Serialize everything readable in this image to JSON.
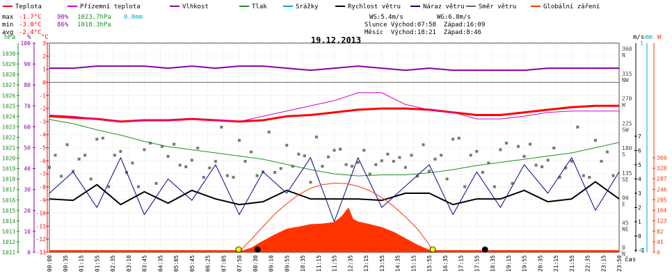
{
  "legend": [
    {
      "label": "Teplota",
      "color": "#ff0000"
    },
    {
      "label": "Přízemní teplota",
      "color": "#cc00cc"
    },
    {
      "label": "Vlhkost",
      "color": "#8800aa"
    },
    {
      "label": "Tlak",
      "color": "#228b22"
    },
    {
      "label": "Srážky",
      "color": "#00aacc"
    },
    {
      "label": "Rychlost větru",
      "color": "#000000"
    },
    {
      "label": "Náraz větru",
      "color": "#000088"
    },
    {
      "label": "Směr větru",
      "color": "#666666"
    },
    {
      "label": "Globální záření",
      "color": "#ff3300"
    }
  ],
  "stats": {
    "max_label": "max",
    "max_temp": "-1.7°C",
    "max_hum": "90%",
    "max_press": "1023.7hPa",
    "max_rain": "0.0mm",
    "min_label": "min",
    "min_temp": "-3.0°C",
    "min_hum": "86%",
    "min_press": "1018.3hPa",
    "avg_label": "avg",
    "avg_temp": "-2.4°C"
  },
  "wind_info": {
    "ws": "WS:5.4m/s",
    "wg": "WG:6.8m/s",
    "sun": "Slunce Východ:07:58  Západ:16:09",
    "moon": "Měsíc  Východ:18:21  Západ:8:46"
  },
  "axis_units": {
    "hpa": "hPa",
    "pct": "%",
    "degc": "°C",
    "ms": "m/s",
    "mm": "mm",
    "w": "W",
    "cas": "čas"
  },
  "chart_data": {
    "type": "line",
    "title": "19.12.2013",
    "xlabel": "čas",
    "x_ticks": [
      "00:00",
      "00:35",
      "01:15",
      "01:55",
      "02:35",
      "03:10",
      "03:45",
      "04:35",
      "05:05",
      "05:45",
      "06:25",
      "07:05",
      "07:50",
      "08:30",
      "09:10",
      "09:55",
      "10:35",
      "11:15",
      "11:55",
      "12:35",
      "13:15",
      "13:55",
      "14:35",
      "15:15",
      "15:55",
      "16:35",
      "17:15",
      "17:55",
      "18:35",
      "19:15",
      "19:55",
      "20:35",
      "21:15",
      "21:55",
      "22:35",
      "23:15",
      "23:50"
    ],
    "axes": {
      "pressure_hpa": {
        "range": [
          1011,
          1031
        ],
        "ticks": [
          1011,
          1012,
          1013,
          1014,
          1015,
          1016,
          1017,
          1018,
          1019,
          1020,
          1021,
          1022,
          1023,
          1024,
          1025,
          1026,
          1027,
          1028,
          1029,
          1030
        ]
      },
      "humidity_pct": {
        "range": [
          0,
          100
        ],
        "ticks": [
          0,
          10,
          20,
          30,
          40,
          50,
          60,
          70,
          80,
          90,
          100
        ]
      },
      "temperature_c": {
        "range": [
          -13,
          3
        ],
        "ticks": [
          3,
          2,
          1,
          0,
          -1,
          -2,
          -3,
          -4,
          -5,
          -6,
          -7,
          -8,
          -9,
          -10,
          -11,
          -12,
          -13
        ]
      },
      "wind_dir": {
        "ticks": [
          {
            "deg": 0,
            "dir": "N"
          },
          {
            "deg": 45,
            "dir": "NE"
          },
          {
            "deg": 90,
            "dir": "E"
          },
          {
            "deg": 135,
            "dir": "SE"
          },
          {
            "deg": 180,
            "dir": "S"
          },
          {
            "deg": 225,
            "dir": "SW"
          },
          {
            "deg": 270,
            "dir": "W"
          },
          {
            "deg": 315,
            "dir": "NW"
          },
          {
            "deg": 360,
            "dir": "N"
          }
        ]
      },
      "wind_ms": {
        "ticks": [
          -1,
          0,
          1,
          2,
          3,
          4,
          5,
          6,
          7
        ]
      },
      "rain_mm": {
        "ticks": [
          0,
          1
        ]
      },
      "radiation_w": {
        "ticks": [
          0,
          41,
          82,
          123,
          164,
          205,
          246,
          287,
          328,
          369
        ]
      }
    },
    "series": [
      {
        "name": "Teplota",
        "axis": "temperature_c",
        "color": "#ff0000",
        "width": 3,
        "x": [
          0,
          1,
          2,
          3,
          4,
          5,
          6,
          7,
          8,
          9,
          10,
          11,
          12,
          13,
          14,
          15,
          16,
          17,
          18,
          19,
          20,
          21,
          22,
          23,
          24
        ],
        "y": [
          -2.6,
          -2.7,
          -2.8,
          -3.0,
          -2.9,
          -2.9,
          -2.8,
          -2.9,
          -3.0,
          -2.9,
          -2.6,
          -2.5,
          -2.3,
          -2.1,
          -2.0,
          -2.0,
          -2.1,
          -2.3,
          -2.5,
          -2.5,
          -2.3,
          -2.1,
          -1.9,
          -1.8,
          -1.8
        ]
      },
      {
        "name": "Přízemní teplota",
        "axis": "temperature_c",
        "color": "#cc00cc",
        "width": 1,
        "x": [
          0,
          1,
          2,
          3,
          4,
          5,
          6,
          7,
          8,
          9,
          10,
          11,
          12,
          13,
          14,
          15,
          16,
          17,
          18,
          19,
          20,
          21,
          22,
          23,
          24
        ],
        "y": [
          -2.5,
          -2.6,
          -2.8,
          -3.0,
          -2.9,
          -2.9,
          -2.8,
          -2.9,
          -3.0,
          -2.6,
          -2.2,
          -1.8,
          -1.4,
          -0.8,
          -0.8,
          -1.7,
          -2.1,
          -2.3,
          -2.8,
          -2.8,
          -2.6,
          -2.3,
          -2.2,
          -2.2,
          -2.2
        ]
      },
      {
        "name": "Vlhkost",
        "axis": "humidity_pct",
        "color": "#8800aa",
        "width": 2,
        "x": [
          0,
          1,
          2,
          3,
          4,
          5,
          6,
          7,
          8,
          9,
          10,
          11,
          12,
          13,
          14,
          15,
          16,
          17,
          18,
          19,
          20,
          21,
          22,
          23,
          24
        ],
        "y": [
          88,
          88,
          89,
          89,
          89,
          88,
          89,
          88,
          89,
          89,
          88,
          87,
          88,
          89,
          88,
          87,
          88,
          87,
          87,
          87,
          87,
          88,
          88,
          88,
          88
        ]
      },
      {
        "name": "Tlak",
        "axis": "pressure_hpa",
        "color": "#228b22",
        "width": 1,
        "x": [
          0,
          1,
          2,
          3,
          4,
          5,
          6,
          7,
          8,
          9,
          10,
          11,
          12,
          13,
          14,
          15,
          16,
          17,
          18,
          19,
          20,
          21,
          22,
          23,
          24
        ],
        "y": [
          1023.7,
          1023.3,
          1022.7,
          1022.2,
          1021.6,
          1021.1,
          1020.8,
          1020.5,
          1020.2,
          1019.9,
          1019.4,
          1018.9,
          1018.5,
          1018.3,
          1018.4,
          1018.4,
          1018.6,
          1018.9,
          1019.3,
          1019.6,
          1019.9,
          1020.2,
          1020.5,
          1021.0,
          1021.5
        ]
      },
      {
        "name": "Rychlost větru",
        "axis": "wind_ms",
        "color": "#000000",
        "width": 2,
        "x": [
          0,
          1,
          2,
          3,
          4,
          5,
          6,
          7,
          8,
          9,
          10,
          11,
          12,
          13,
          14,
          15,
          16,
          17,
          18,
          19,
          20,
          21,
          22,
          23,
          24
        ],
        "y": [
          2.6,
          2.5,
          3.6,
          2.2,
          3.1,
          2.3,
          3.2,
          2.6,
          2.2,
          2.4,
          3.2,
          2.6,
          2.6,
          2.6,
          2.5,
          3.0,
          3.0,
          2.2,
          2.6,
          2.6,
          3.2,
          2.4,
          2.6,
          3.8,
          2.6
        ]
      },
      {
        "name": "Náraz větru",
        "axis": "wind_ms",
        "color": "#000088",
        "width": 1,
        "x": [
          0,
          1,
          2,
          3,
          4,
          5,
          6,
          7,
          8,
          9,
          10,
          11,
          12,
          13,
          14,
          15,
          16,
          17,
          18,
          19,
          20,
          21,
          22,
          23,
          24
        ],
        "y": [
          3.0,
          4.5,
          2.0,
          5.5,
          1.5,
          4.0,
          2.5,
          5.0,
          1.5,
          4.5,
          3.0,
          5.5,
          1.0,
          5.5,
          2.0,
          3.5,
          5.0,
          1.5,
          4.5,
          2.0,
          5.0,
          3.0,
          5.5,
          1.8,
          4.5
        ]
      },
      {
        "name": "Globální záření",
        "axis": "radiation_w",
        "color": "#ff3300",
        "fill": true,
        "x": [
          7.9,
          8.5,
          9.0,
          9.5,
          10.0,
          10.5,
          11.0,
          11.5,
          12.0,
          12.3,
          12.6,
          12.8,
          13.0,
          13.5,
          14.0,
          14.5,
          15.0,
          15.5,
          16.0,
          16.2
        ],
        "y": [
          0,
          18,
          45,
          70,
          92,
          100,
          110,
          112,
          118,
          140,
          175,
          130,
          120,
          110,
          98,
          80,
          55,
          30,
          10,
          0
        ]
      },
      {
        "name": "Globální záření (teoretické)",
        "axis": "radiation_w",
        "color": "#ff3300",
        "width": 1,
        "fill": false,
        "x": [
          7.97,
          8.5,
          9.0,
          9.5,
          10.0,
          10.5,
          11.0,
          11.5,
          12.0,
          12.5,
          13.0,
          13.5,
          14.0,
          14.5,
          15.0,
          15.5,
          16.0,
          16.15
        ],
        "y": [
          0,
          50,
          100,
          150,
          190,
          225,
          250,
          264,
          270,
          268,
          258,
          240,
          214,
          180,
          138,
          92,
          30,
          0
        ]
      }
    ],
    "wind_direction_points": {
      "x_hours_step": 0.25,
      "deg_pattern": [
        180,
        165,
        150,
        170,
        145,
        190,
        160,
        140,
        175,
        200,
        135,
        155,
        185,
        170,
        150,
        130,
        160,
        195,
        145,
        175
      ]
    },
    "events": [
      {
        "name": "sunrise",
        "x": 7.97,
        "color": "#ffff00"
      },
      {
        "name": "sunset",
        "x": 16.15,
        "color": "#ffff00"
      },
      {
        "name": "moonset",
        "x": 8.77,
        "color": "#000000"
      },
      {
        "name": "moonrise",
        "x": 18.35,
        "color": "#000000"
      }
    ]
  }
}
